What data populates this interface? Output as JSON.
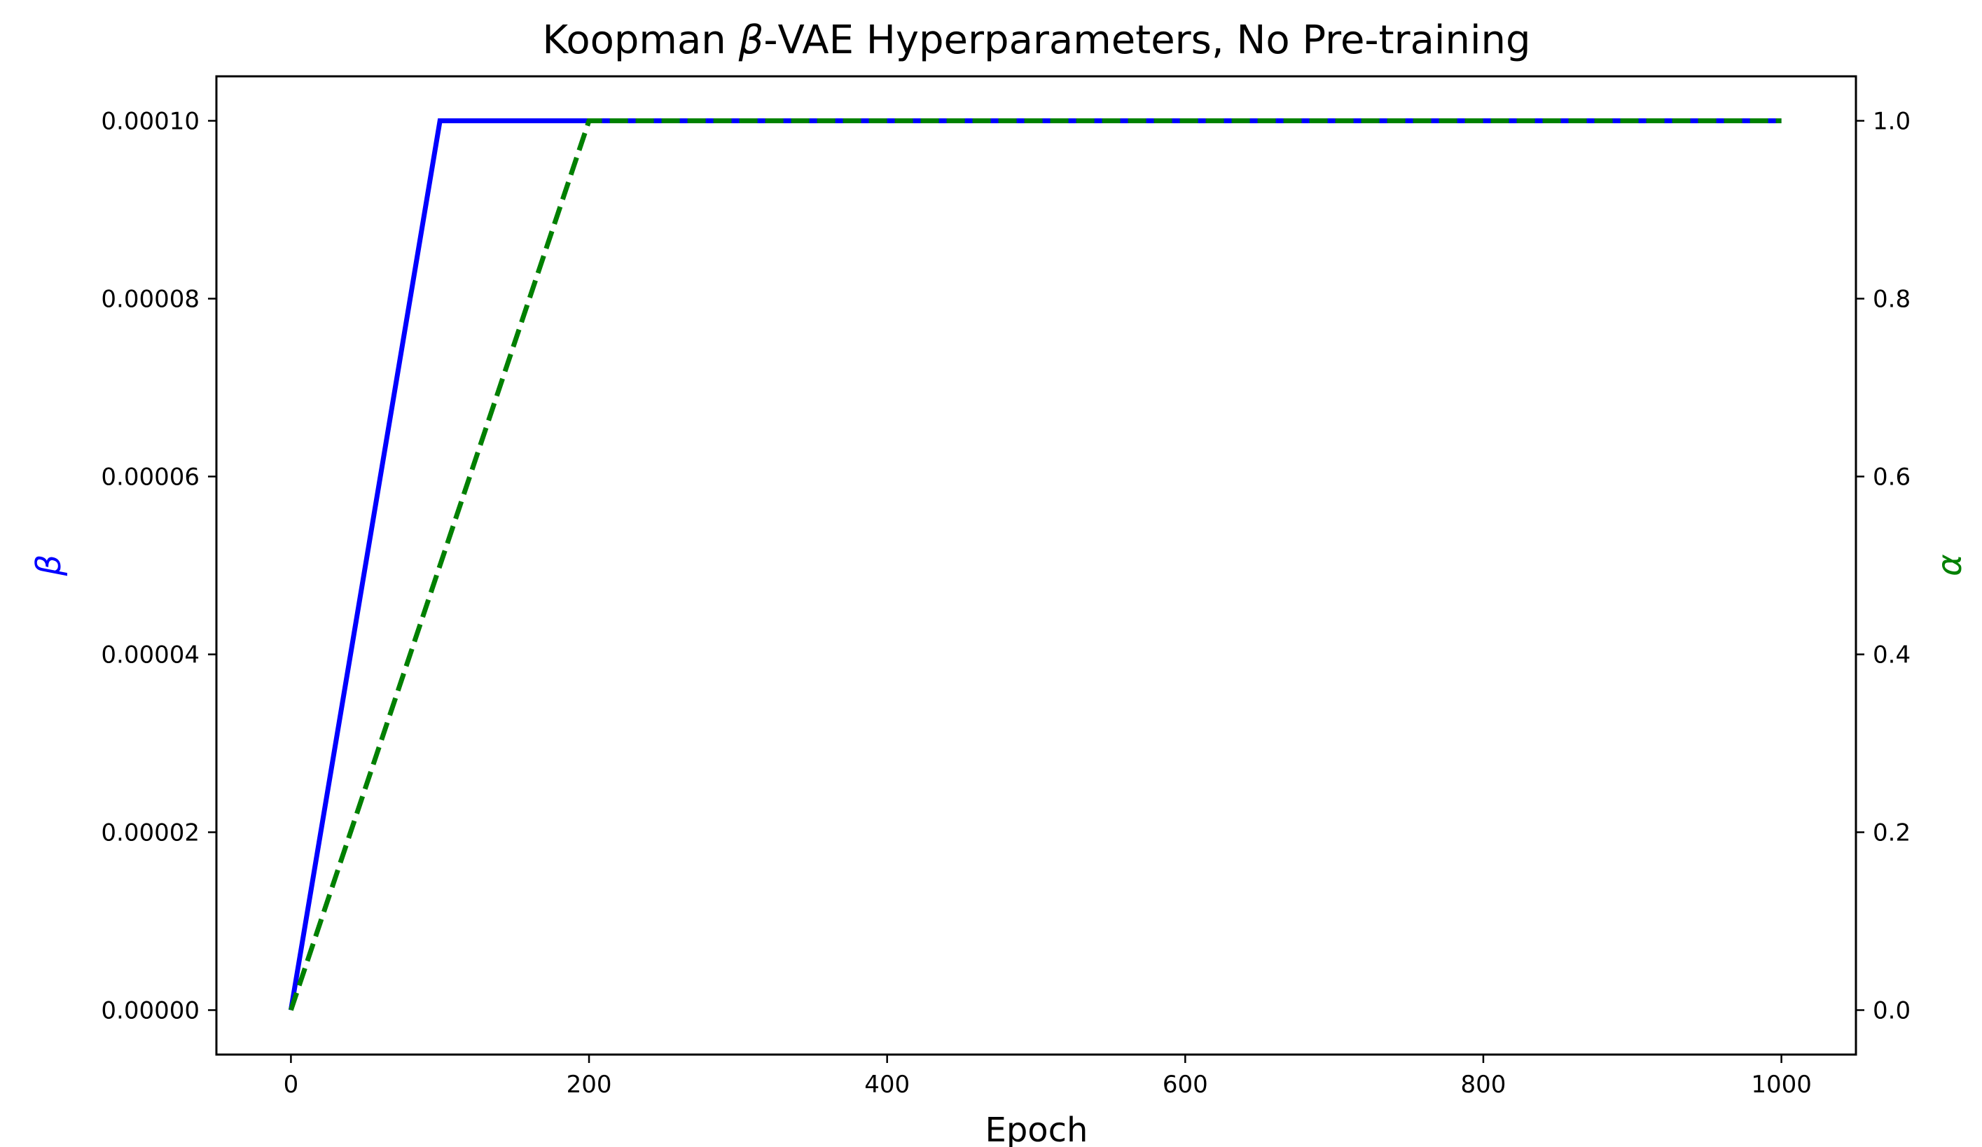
{
  "chart_data": {
    "type": "line",
    "title_prefix": "Koopman ",
    "title_symbol": "β",
    "title_suffix": "-VAE Hyperparameters, No Pre-training",
    "xlabel": "Epoch",
    "ylabel_left": "β",
    "ylabel_right": "α",
    "xlim": [
      -50,
      1050
    ],
    "ylim_left": [
      -5e-06,
      0.000105
    ],
    "ylim_right": [
      -0.05,
      1.05
    ],
    "x_ticks": [
      0,
      200,
      400,
      600,
      800,
      1000
    ],
    "x_tick_labels": [
      "0",
      "200",
      "400",
      "600",
      "800",
      "1000"
    ],
    "y_left_ticks": [
      0,
      2e-05,
      4e-05,
      6e-05,
      8e-05,
      0.0001
    ],
    "y_left_tick_labels": [
      "0.00000",
      "0.00002",
      "0.00004",
      "0.00006",
      "0.00008",
      "0.00010"
    ],
    "y_right_ticks": [
      0,
      0.2,
      0.4,
      0.6,
      0.8,
      1.0
    ],
    "y_right_tick_labels": [
      "0.0",
      "0.2",
      "0.4",
      "0.6",
      "0.8",
      "1.0"
    ],
    "grid": false,
    "series": [
      {
        "axis": "left",
        "color": "#0000ff",
        "dash": "solid",
        "x": [
          0,
          100,
          1000
        ],
        "y": [
          0,
          0.0001,
          0.0001
        ]
      },
      {
        "axis": "right",
        "color": "#008000",
        "dash": "dashed",
        "x": [
          0,
          200,
          1000
        ],
        "y": [
          0,
          1.0,
          1.0
        ]
      }
    ]
  }
}
